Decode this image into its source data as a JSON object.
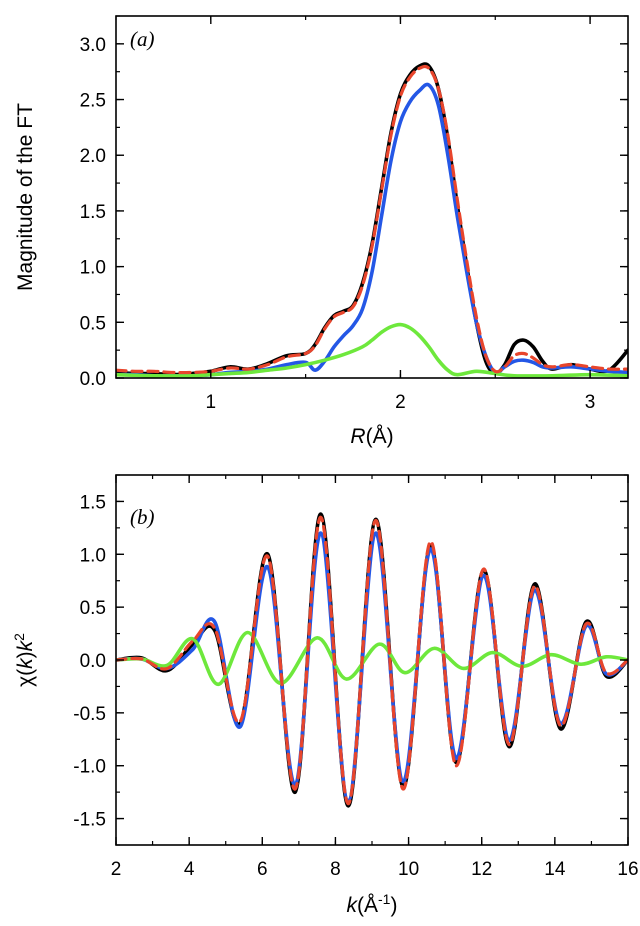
{
  "chart_data": [
    {
      "panel": "(a)",
      "type": "line",
      "xlabel": "R(Å)",
      "ylabel": "Magnitude of the FT",
      "xlim": [
        0.5,
        3.2
      ],
      "ylim": [
        0,
        3.25
      ],
      "xticks": [
        1,
        2,
        3
      ],
      "yticks": [
        0.0,
        0.5,
        1.0,
        1.5,
        2.0,
        2.5,
        3.0
      ],
      "grid": false,
      "legend": "none",
      "series": [
        {
          "color": "#000000",
          "style": "solid",
          "x": [
            0.5,
            0.6,
            0.7,
            0.8,
            0.9,
            1.0,
            1.1,
            1.2,
            1.3,
            1.4,
            1.5,
            1.55,
            1.6,
            1.65,
            1.7,
            1.75,
            1.8,
            1.85,
            1.9,
            1.95,
            2.0,
            2.05,
            2.1,
            2.15,
            2.2,
            2.25,
            2.3,
            2.35,
            2.4,
            2.45,
            2.5,
            2.55,
            2.6,
            2.65,
            2.7,
            2.75,
            2.8,
            2.9,
            3.0,
            3.1,
            3.2
          ],
          "y": [
            0.05,
            0.04,
            0.04,
            0.03,
            0.04,
            0.06,
            0.1,
            0.08,
            0.13,
            0.2,
            0.22,
            0.3,
            0.45,
            0.56,
            0.6,
            0.65,
            0.85,
            1.2,
            1.7,
            2.2,
            2.55,
            2.72,
            2.8,
            2.8,
            2.6,
            2.15,
            1.55,
            1.0,
            0.5,
            0.15,
            0.04,
            0.12,
            0.3,
            0.34,
            0.28,
            0.15,
            0.08,
            0.12,
            0.08,
            0.07,
            0.25
          ]
        },
        {
          "color": "#e8452c",
          "style": "dashed",
          "x": [
            0.5,
            0.6,
            0.7,
            0.8,
            0.9,
            1.0,
            1.1,
            1.2,
            1.3,
            1.4,
            1.5,
            1.55,
            1.6,
            1.65,
            1.7,
            1.75,
            1.8,
            1.85,
            1.9,
            1.95,
            2.0,
            2.05,
            2.1,
            2.15,
            2.2,
            2.25,
            2.3,
            2.35,
            2.4,
            2.45,
            2.5,
            2.55,
            2.6,
            2.65,
            2.7,
            2.75,
            2.8,
            2.9,
            3.0,
            3.1,
            3.2
          ],
          "y": [
            0.07,
            0.06,
            0.06,
            0.05,
            0.05,
            0.06,
            0.09,
            0.08,
            0.12,
            0.19,
            0.22,
            0.29,
            0.44,
            0.55,
            0.59,
            0.64,
            0.83,
            1.18,
            1.68,
            2.18,
            2.53,
            2.7,
            2.78,
            2.78,
            2.6,
            2.18,
            1.6,
            1.05,
            0.55,
            0.2,
            0.06,
            0.1,
            0.2,
            0.22,
            0.18,
            0.12,
            0.1,
            0.12,
            0.1,
            0.08,
            0.08
          ]
        },
        {
          "color": "#2457e6",
          "style": "solid",
          "x": [
            0.5,
            0.6,
            0.7,
            0.8,
            0.9,
            1.0,
            1.1,
            1.2,
            1.3,
            1.4,
            1.5,
            1.55,
            1.6,
            1.65,
            1.7,
            1.75,
            1.8,
            1.85,
            1.9,
            1.95,
            2.0,
            2.05,
            2.1,
            2.15,
            2.2,
            2.25,
            2.3,
            2.35,
            2.4,
            2.45,
            2.5,
            2.55,
            2.6,
            2.65,
            2.7,
            2.75,
            2.8,
            2.9,
            3.0,
            3.1,
            3.2
          ],
          "y": [
            0.03,
            0.03,
            0.02,
            0.02,
            0.02,
            0.03,
            0.05,
            0.06,
            0.08,
            0.12,
            0.14,
            0.07,
            0.15,
            0.28,
            0.38,
            0.47,
            0.62,
            0.95,
            1.45,
            1.95,
            2.3,
            2.48,
            2.58,
            2.63,
            2.45,
            2.0,
            1.45,
            0.95,
            0.5,
            0.2,
            0.05,
            0.1,
            0.15,
            0.16,
            0.14,
            0.1,
            0.09,
            0.1,
            0.08,
            0.06,
            0.05
          ]
        },
        {
          "color": "#6ee83c",
          "style": "solid",
          "x": [
            0.5,
            0.7,
            0.9,
            1.0,
            1.1,
            1.2,
            1.3,
            1.4,
            1.5,
            1.6,
            1.7,
            1.8,
            1.85,
            1.9,
            1.95,
            2.0,
            2.05,
            2.1,
            2.15,
            2.2,
            2.25,
            2.3,
            2.4,
            2.5,
            2.6,
            2.8,
            3.0,
            3.2
          ],
          "y": [
            0.03,
            0.02,
            0.02,
            0.03,
            0.04,
            0.05,
            0.07,
            0.09,
            0.12,
            0.16,
            0.21,
            0.28,
            0.34,
            0.41,
            0.46,
            0.48,
            0.45,
            0.38,
            0.28,
            0.16,
            0.07,
            0.03,
            0.06,
            0.04,
            0.02,
            0.02,
            0.03,
            0.02
          ]
        }
      ]
    },
    {
      "panel": "(b)",
      "type": "line",
      "xlabel": "k(Å-1)",
      "ylabel": "χ(k)k2",
      "xlim": [
        2,
        16
      ],
      "ylim": [
        -1.75,
        1.75
      ],
      "xticks": [
        2,
        4,
        6,
        8,
        10,
        12,
        14,
        16
      ],
      "yticks": [
        -1.5,
        -1.0,
        -0.5,
        0.0,
        0.5,
        1.0,
        1.5
      ],
      "grid": false,
      "legend": "none",
      "series": [
        {
          "color": "#000000",
          "style": "solid",
          "x": [
            2.0,
            2.7,
            3.4,
            4.1,
            4.7,
            5.4,
            6.15,
            6.9,
            7.6,
            8.35,
            9.1,
            9.85,
            10.6,
            11.3,
            12.05,
            12.75,
            13.45,
            14.15,
            14.85,
            15.4,
            16.0
          ],
          "y": [
            0.0,
            0.02,
            -0.1,
            0.15,
            0.28,
            -0.6,
            1.0,
            -1.25,
            1.38,
            -1.38,
            1.33,
            -1.2,
            1.08,
            -0.97,
            0.85,
            -0.82,
            0.72,
            -0.65,
            0.36,
            -0.15,
            0.0
          ]
        },
        {
          "color": "#e8452c",
          "style": "dashed",
          "x": [
            2.0,
            2.7,
            3.4,
            4.1,
            4.7,
            5.4,
            6.15,
            6.9,
            7.6,
            8.35,
            9.1,
            9.85,
            10.6,
            11.3,
            12.05,
            12.75,
            13.45,
            14.15,
            14.85,
            15.4,
            16.0
          ],
          "y": [
            0.0,
            0.01,
            -0.08,
            0.18,
            0.3,
            -0.58,
            0.98,
            -1.22,
            1.35,
            -1.36,
            1.32,
            -1.22,
            1.12,
            -1.0,
            0.86,
            -0.8,
            0.7,
            -0.62,
            0.34,
            -0.12,
            0.0
          ]
        },
        {
          "color": "#2457e6",
          "style": "solid",
          "x": [
            2.0,
            2.7,
            3.4,
            4.1,
            4.7,
            5.4,
            6.15,
            6.9,
            7.6,
            8.35,
            9.1,
            9.85,
            10.6,
            11.3,
            12.05,
            12.75,
            13.45,
            14.15,
            14.85,
            15.4,
            16.0
          ],
          "y": [
            0.0,
            0.01,
            -0.08,
            0.1,
            0.36,
            -0.63,
            0.88,
            -1.18,
            1.2,
            -1.33,
            1.2,
            -1.15,
            1.05,
            -0.93,
            0.8,
            -0.76,
            0.66,
            -0.6,
            0.32,
            -0.13,
            0.0
          ]
        },
        {
          "color": "#6ee83c",
          "style": "solid",
          "x": [
            2.0,
            2.7,
            3.4,
            4.1,
            4.8,
            5.6,
            6.5,
            7.5,
            8.3,
            9.2,
            9.9,
            10.7,
            11.5,
            12.3,
            13.1,
            13.9,
            14.7,
            15.4,
            16.0
          ],
          "y": [
            0.0,
            0.01,
            -0.05,
            0.2,
            -0.23,
            0.26,
            -0.22,
            0.21,
            -0.18,
            0.15,
            -0.12,
            0.11,
            -0.08,
            0.07,
            -0.06,
            0.05,
            -0.04,
            0.03,
            0.0
          ]
        }
      ]
    }
  ]
}
